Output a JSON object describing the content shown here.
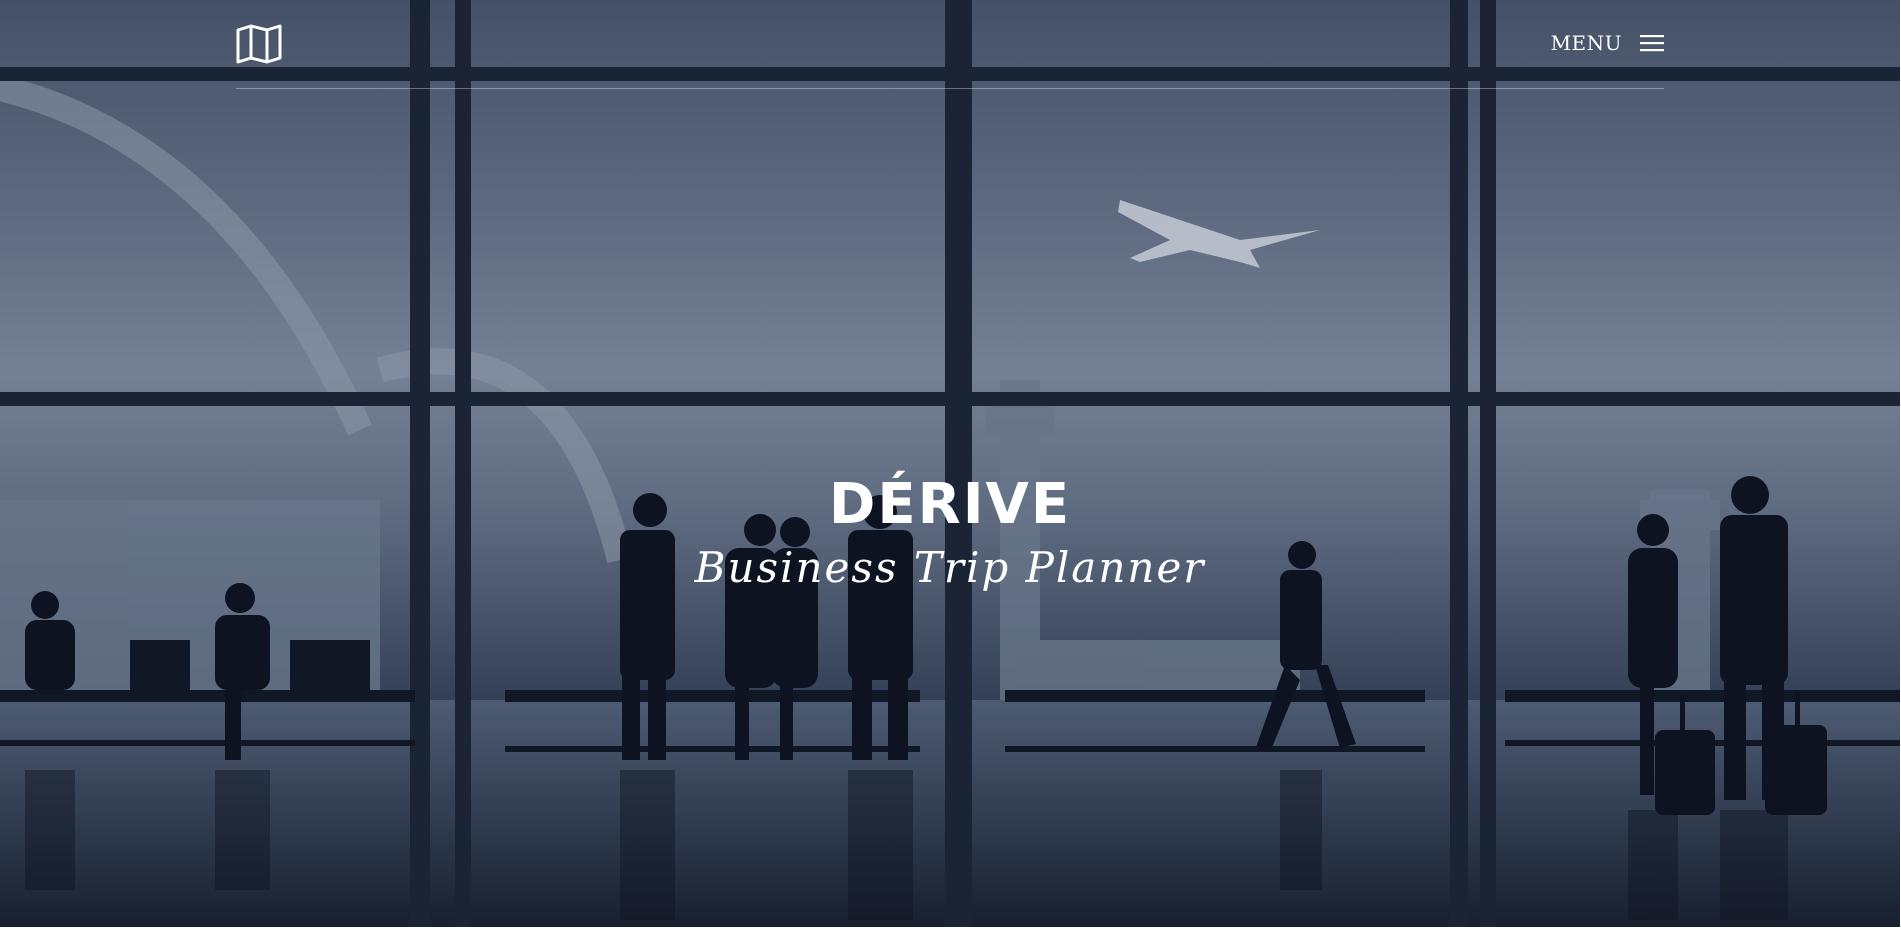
{
  "header": {
    "logo_icon": "map-icon",
    "menu_label": "MENU",
    "menu_icon": "hamburger-icon"
  },
  "hero": {
    "title": "DÉRIVE",
    "subtitle": "Business Trip Planner",
    "background_image": "airport-terminal-silhouettes"
  },
  "colors": {
    "text": "#ffffff",
    "sky": "#8a97aa",
    "silhouette": "#0c121d"
  }
}
